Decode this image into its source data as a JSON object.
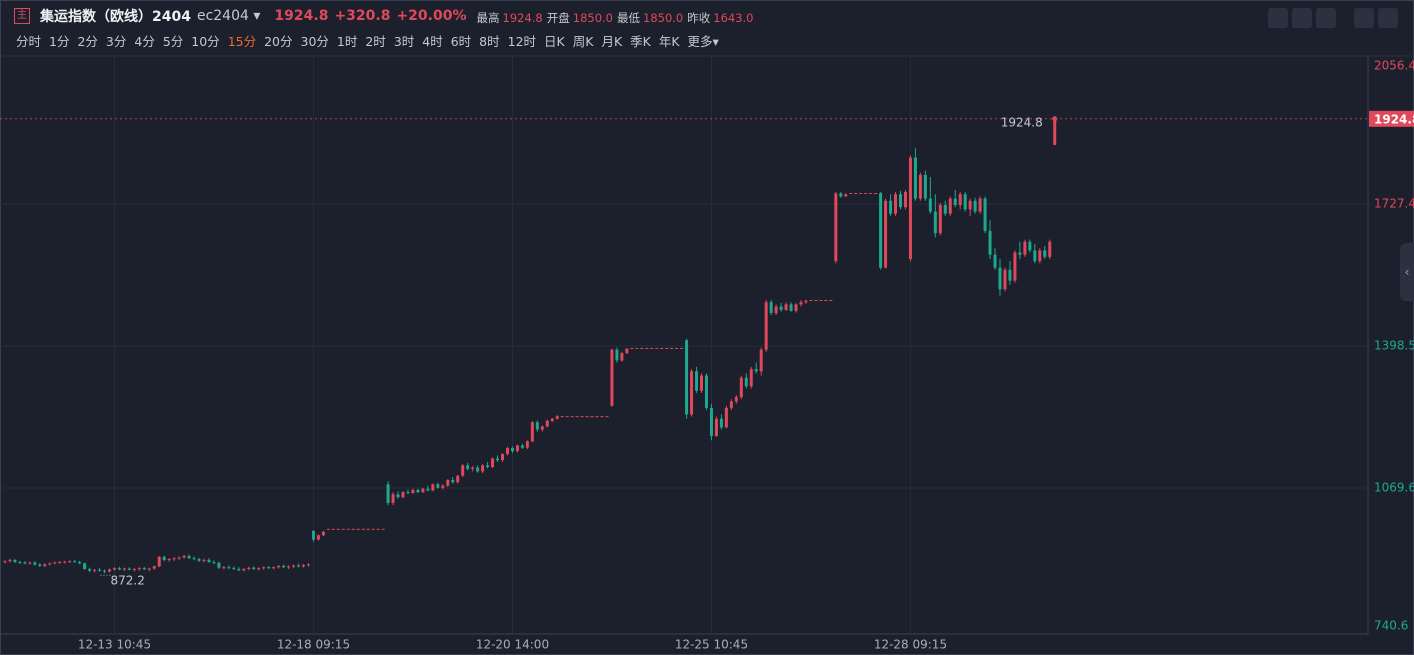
{
  "header": {
    "badge": "主",
    "title": "集运指数（欧线）2404",
    "code": "ec2404",
    "price": "1924.8",
    "change": "+320.8",
    "change_pct": "+20.00%",
    "stats": [
      {
        "label": "最高",
        "value": "1924.8"
      },
      {
        "label": "开盘",
        "value": "1850.0"
      },
      {
        "label": "最低",
        "value": "1850.0"
      },
      {
        "label": "昨收",
        "value": "1643.0"
      }
    ],
    "intervals": [
      "分时",
      "1分",
      "2分",
      "3分",
      "4分",
      "5分",
      "10分",
      "15分",
      "20分",
      "30分",
      "1时",
      "2时",
      "3时",
      "4时",
      "6时",
      "8时",
      "12时",
      "日K",
      "周K",
      "月K",
      "季K",
      "年K",
      "更多"
    ],
    "active_interval": "15分"
  },
  "chart_data": {
    "type": "candlestick",
    "up_color": "#e0485b",
    "down_color": "#1fa88f",
    "ylim": [
      740.6,
      2056.4
    ],
    "yticks": [
      740.6,
      1069.6,
      1398.5,
      1727.4,
      2056.4
    ],
    "xticks": [
      {
        "value": 22,
        "label": "12-13 10:45"
      },
      {
        "value": 62,
        "label": "12-18 09:15"
      },
      {
        "value": 102,
        "label": "12-20 14:00"
      },
      {
        "value": 142,
        "label": "12-25 10:45"
      },
      {
        "value": 182,
        "label": "12-28 09:15"
      }
    ],
    "grid": true,
    "last_price": 1924.8,
    "low_annotation": {
      "index": 20,
      "value": 872.2
    },
    "ohlc": [
      [
        898,
        902,
        895,
        900
      ],
      [
        900,
        906,
        897,
        903
      ],
      [
        903,
        905,
        896,
        898
      ],
      [
        898,
        901,
        894,
        897
      ],
      [
        897,
        900,
        893,
        895
      ],
      [
        895,
        899,
        892,
        897
      ],
      [
        897,
        900,
        890,
        892
      ],
      [
        892,
        896,
        887,
        889
      ],
      [
        889,
        895,
        886,
        893
      ],
      [
        893,
        897,
        890,
        895
      ],
      [
        895,
        899,
        893,
        897
      ],
      [
        897,
        900,
        894,
        898
      ],
      [
        898,
        901,
        895,
        899
      ],
      [
        899,
        902,
        896,
        900
      ],
      [
        900,
        903,
        897,
        898
      ],
      [
        898,
        901,
        893,
        895
      ],
      [
        895,
        897,
        880,
        882
      ],
      [
        882,
        885,
        875,
        878
      ],
      [
        878,
        882,
        874,
        880
      ],
      [
        880,
        884,
        876,
        878
      ],
      [
        878,
        881,
        872.2,
        876
      ],
      [
        876,
        883,
        874,
        881
      ],
      [
        881,
        886,
        878,
        884
      ],
      [
        884,
        887,
        879,
        881
      ],
      [
        881,
        885,
        877,
        883
      ],
      [
        883,
        886,
        879,
        880
      ],
      [
        880,
        884,
        876,
        882
      ],
      [
        882,
        886,
        878,
        884
      ],
      [
        884,
        887,
        880,
        881
      ],
      [
        881,
        885,
        877,
        883
      ],
      [
        883,
        890,
        880,
        888
      ],
      [
        888,
        912,
        886,
        910
      ],
      [
        910,
        913,
        900,
        903
      ],
      [
        903,
        907,
        898,
        905
      ],
      [
        905,
        909,
        901,
        907
      ],
      [
        907,
        911,
        903,
        909
      ],
      [
        909,
        915,
        906,
        912
      ],
      [
        912,
        916,
        905,
        907
      ],
      [
        907,
        911,
        902,
        905
      ],
      [
        905,
        908,
        898,
        901
      ],
      [
        901,
        906,
        897,
        903
      ],
      [
        903,
        907,
        896,
        898
      ],
      [
        898,
        902,
        893,
        896
      ],
      [
        896,
        899,
        882,
        885
      ],
      [
        885,
        889,
        881,
        886
      ],
      [
        886,
        890,
        882,
        884
      ],
      [
        884,
        888,
        880,
        882
      ],
      [
        882,
        886,
        877,
        879
      ],
      [
        879,
        884,
        876,
        882
      ],
      [
        882,
        887,
        879,
        885
      ],
      [
        885,
        888,
        880,
        882
      ],
      [
        882,
        886,
        878,
        884
      ],
      [
        884,
        888,
        880,
        886
      ],
      [
        886,
        889,
        882,
        884
      ],
      [
        884,
        888,
        881,
        886
      ],
      [
        886,
        891,
        883,
        889
      ],
      [
        889,
        892,
        884,
        886
      ],
      [
        886,
        890,
        882,
        888
      ],
      [
        888,
        892,
        884,
        890
      ],
      [
        890,
        894,
        886,
        888
      ],
      [
        888,
        893,
        885,
        891
      ],
      [
        891,
        895,
        887,
        893
      ],
      [
        970,
        972,
        945,
        950
      ],
      [
        950,
        962,
        948,
        960
      ],
      [
        960,
        970,
        958,
        968
      ],
      [
        975,
        975,
        975,
        975
      ],
      [
        975,
        975,
        975,
        975
      ],
      [
        975,
        975,
        975,
        975
      ],
      [
        975,
        975,
        975,
        975
      ],
      [
        975,
        975,
        975,
        975
      ],
      [
        975,
        975,
        975,
        975
      ],
      [
        975,
        975,
        975,
        975
      ],
      [
        975,
        975,
        975,
        975
      ],
      [
        975,
        975,
        975,
        975
      ],
      [
        975,
        975,
        975,
        975
      ],
      [
        975,
        975,
        975,
        975
      ],
      [
        975,
        975,
        975,
        975
      ],
      [
        1078,
        1085,
        1030,
        1035
      ],
      [
        1035,
        1060,
        1030,
        1055
      ],
      [
        1055,
        1062,
        1045,
        1048
      ],
      [
        1048,
        1062,
        1046,
        1060
      ],
      [
        1060,
        1066,
        1055,
        1058
      ],
      [
        1058,
        1068,
        1056,
        1065
      ],
      [
        1065,
        1068,
        1058,
        1060
      ],
      [
        1060,
        1070,
        1058,
        1068
      ],
      [
        1068,
        1075,
        1062,
        1064
      ],
      [
        1064,
        1080,
        1062,
        1078
      ],
      [
        1078,
        1082,
        1068,
        1070
      ],
      [
        1070,
        1078,
        1066,
        1075
      ],
      [
        1075,
        1090,
        1072,
        1088
      ],
      [
        1088,
        1095,
        1080,
        1083
      ],
      [
        1083,
        1100,
        1080,
        1098
      ],
      [
        1098,
        1125,
        1095,
        1122
      ],
      [
        1122,
        1128,
        1110,
        1114
      ],
      [
        1114,
        1120,
        1108,
        1117
      ],
      [
        1117,
        1122,
        1105,
        1108
      ],
      [
        1108,
        1125,
        1104,
        1122
      ],
      [
        1122,
        1130,
        1115,
        1118
      ],
      [
        1118,
        1140,
        1116,
        1138
      ],
      [
        1138,
        1145,
        1130,
        1134
      ],
      [
        1134,
        1150,
        1130,
        1148
      ],
      [
        1148,
        1165,
        1145,
        1162
      ],
      [
        1162,
        1166,
        1150,
        1155
      ],
      [
        1155,
        1170,
        1152,
        1168
      ],
      [
        1168,
        1172,
        1160,
        1163
      ],
      [
        1163,
        1180,
        1160,
        1178
      ],
      [
        1178,
        1225,
        1175,
        1222
      ],
      [
        1222,
        1226,
        1200,
        1205
      ],
      [
        1205,
        1215,
        1200,
        1212
      ],
      [
        1212,
        1228,
        1210,
        1225
      ],
      [
        1225,
        1232,
        1222,
        1230
      ],
      [
        1230,
        1238,
        1228,
        1236
      ],
      [
        1236,
        1236,
        1236,
        1236
      ],
      [
        1236,
        1236,
        1236,
        1236
      ],
      [
        1236,
        1236,
        1236,
        1236
      ],
      [
        1236,
        1236,
        1236,
        1236
      ],
      [
        1236,
        1236,
        1236,
        1236
      ],
      [
        1236,
        1236,
        1236,
        1236
      ],
      [
        1236,
        1236,
        1236,
        1236
      ],
      [
        1236,
        1236,
        1236,
        1236
      ],
      [
        1236,
        1236,
        1236,
        1236
      ],
      [
        1236,
        1236,
        1236,
        1236
      ],
      [
        1260,
        1392,
        1258,
        1390
      ],
      [
        1390,
        1395,
        1360,
        1365
      ],
      [
        1365,
        1385,
        1362,
        1382
      ],
      [
        1382,
        1394,
        1380,
        1392
      ],
      [
        1394,
        1394,
        1394,
        1394
      ],
      [
        1394,
        1394,
        1394,
        1394
      ],
      [
        1394,
        1394,
        1394,
        1394
      ],
      [
        1394,
        1394,
        1394,
        1394
      ],
      [
        1394,
        1394,
        1394,
        1394
      ],
      [
        1394,
        1394,
        1394,
        1394
      ],
      [
        1394,
        1394,
        1394,
        1394
      ],
      [
        1394,
        1394,
        1394,
        1394
      ],
      [
        1394,
        1394,
        1394,
        1394
      ],
      [
        1394,
        1394,
        1394,
        1394
      ],
      [
        1394,
        1394,
        1394,
        1394
      ],
      [
        1412,
        1415,
        1230,
        1240
      ],
      [
        1240,
        1345,
        1235,
        1340
      ],
      [
        1340,
        1350,
        1290,
        1295
      ],
      [
        1295,
        1335,
        1290,
        1330
      ],
      [
        1330,
        1335,
        1250,
        1255
      ],
      [
        1255,
        1265,
        1180,
        1190
      ],
      [
        1190,
        1235,
        1188,
        1230
      ],
      [
        1230,
        1240,
        1205,
        1210
      ],
      [
        1210,
        1260,
        1208,
        1255
      ],
      [
        1255,
        1275,
        1250,
        1270
      ],
      [
        1270,
        1285,
        1265,
        1280
      ],
      [
        1280,
        1330,
        1275,
        1325
      ],
      [
        1325,
        1335,
        1300,
        1305
      ],
      [
        1305,
        1350,
        1300,
        1345
      ],
      [
        1345,
        1360,
        1335,
        1340
      ],
      [
        1340,
        1395,
        1330,
        1390
      ],
      [
        1390,
        1505,
        1385,
        1500
      ],
      [
        1500,
        1505,
        1470,
        1475
      ],
      [
        1475,
        1495,
        1470,
        1490
      ],
      [
        1490,
        1498,
        1478,
        1482
      ],
      [
        1482,
        1500,
        1480,
        1495
      ],
      [
        1495,
        1500,
        1478,
        1480
      ],
      [
        1480,
        1498,
        1476,
        1495
      ],
      [
        1495,
        1505,
        1490,
        1500
      ],
      [
        1500,
        1506,
        1496,
        1503
      ],
      [
        1505,
        1505,
        1505,
        1505
      ],
      [
        1505,
        1505,
        1505,
        1505
      ],
      [
        1505,
        1505,
        1505,
        1505
      ],
      [
        1505,
        1505,
        1505,
        1505
      ],
      [
        1505,
        1505,
        1505,
        1505
      ],
      [
        1595,
        1755,
        1590,
        1752
      ],
      [
        1752,
        1755,
        1742,
        1745
      ],
      [
        1745,
        1752,
        1744,
        1750
      ],
      [
        1753,
        1753,
        1753,
        1753
      ],
      [
        1753,
        1753,
        1753,
        1753
      ],
      [
        1753,
        1753,
        1753,
        1753
      ],
      [
        1753,
        1753,
        1753,
        1753
      ],
      [
        1753,
        1753,
        1753,
        1753
      ],
      [
        1753,
        1753,
        1753,
        1753
      ],
      [
        1753,
        1755,
        1575,
        1580
      ],
      [
        1580,
        1740,
        1578,
        1735
      ],
      [
        1735,
        1750,
        1700,
        1705
      ],
      [
        1705,
        1755,
        1700,
        1750
      ],
      [
        1750,
        1758,
        1715,
        1720
      ],
      [
        1720,
        1760,
        1715,
        1755
      ],
      [
        1600,
        1840,
        1595,
        1835
      ],
      [
        1835,
        1857,
        1735,
        1740
      ],
      [
        1740,
        1800,
        1735,
        1795
      ],
      [
        1795,
        1805,
        1735,
        1740
      ],
      [
        1740,
        1790,
        1705,
        1710
      ],
      [
        1710,
        1750,
        1650,
        1660
      ],
      [
        1660,
        1730,
        1655,
        1725
      ],
      [
        1725,
        1735,
        1700,
        1705
      ],
      [
        1705,
        1745,
        1700,
        1740
      ],
      [
        1740,
        1760,
        1720,
        1725
      ],
      [
        1725,
        1755,
        1715,
        1750
      ],
      [
        1750,
        1755,
        1710,
        1715
      ],
      [
        1715,
        1740,
        1700,
        1735
      ],
      [
        1735,
        1742,
        1705,
        1710
      ],
      [
        1710,
        1745,
        1705,
        1740
      ],
      [
        1740,
        1745,
        1660,
        1665
      ],
      [
        1665,
        1690,
        1600,
        1610
      ],
      [
        1610,
        1625,
        1575,
        1580
      ],
      [
        1580,
        1600,
        1515,
        1530
      ],
      [
        1530,
        1580,
        1525,
        1575
      ],
      [
        1575,
        1595,
        1540,
        1550
      ],
      [
        1550,
        1620,
        1545,
        1615
      ],
      [
        1615,
        1640,
        1600,
        1610
      ],
      [
        1610,
        1645,
        1605,
        1640
      ],
      [
        1640,
        1645,
        1615,
        1620
      ],
      [
        1620,
        1635,
        1590,
        1595
      ],
      [
        1595,
        1625,
        1590,
        1620
      ],
      [
        1620,
        1630,
        1600,
        1605
      ],
      [
        1605,
        1645,
        1600,
        1640
      ],
      [
        1864,
        1924.8,
        1864,
        1924.8
      ]
    ]
  }
}
